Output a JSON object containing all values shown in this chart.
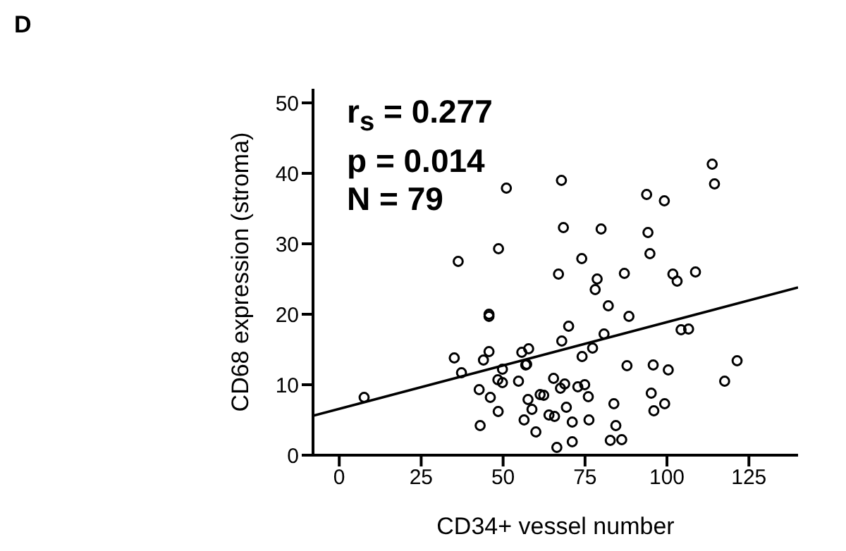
{
  "chart_data": {
    "type": "scatter",
    "xlabel": "CD34+ vessel number",
    "ylabel": "CD68 expression (stroma)",
    "annotations": [
      "D",
      "r$_{s}$ = 0.277",
      "p = 0.014",
      "N = 79"
    ],
    "xlim": [
      -8,
      140
    ],
    "ylim": [
      0,
      52
    ],
    "xticks": [
      0,
      25,
      50,
      75,
      100,
      125
    ],
    "yticks": [
      0,
      10,
      20,
      30,
      40,
      50
    ],
    "grid": false,
    "legend": false,
    "marker": "circle",
    "series": [
      {
        "color": "#000000",
        "x": [
          7.6,
          35.1,
          37.3,
          42.7,
          43.0,
          44.0,
          45.7,
          45.7,
          45.7,
          46.1,
          48.5,
          48.4,
          49.8,
          49.8,
          54.7,
          55.7,
          57.8,
          56.9,
          57.2,
          57.6,
          58.8,
          56.4,
          60.0,
          65.4,
          61.3,
          62.4,
          64.0,
          65.7,
          67.5,
          68.8,
          69.3,
          71.1,
          66.4,
          71.1,
          67.9,
          70.0,
          66.9,
          72.8,
          74.9,
          74.1,
          76.0,
          76.2,
          77.3,
          78.7,
          80.8,
          82.1,
          83.8,
          84.4,
          82.7,
          86.2,
          87.8,
          88.4,
          87.0,
          95.2,
          95.8,
          96.0,
          99.3,
          100.4,
          101.8,
          103.1,
          104.3,
          106.6,
          108.7,
          121.4,
          117.6,
          113.8,
          114.5,
          67.8,
          68.4,
          74.0,
          79.9,
          78.1,
          93.8,
          99.2,
          94.2,
          94.8,
          36.3,
          48.6,
          51.0
        ],
        "values": [
          8.2,
          13.8,
          11.7,
          9.3,
          4.2,
          13.5,
          14.7,
          20,
          19.7,
          8.2,
          6.2,
          10.7,
          12.2,
          10.3,
          10.5,
          14.6,
          15.1,
          12.8,
          12.9,
          7.9,
          6.5,
          5,
          3.3,
          10.9,
          8.6,
          8.5,
          5.7,
          5.5,
          9.5,
          10.1,
          6.8,
          4.7,
          1.1,
          1.9,
          16.2,
          18.3,
          25.7,
          9.7,
          10,
          14,
          8.3,
          5,
          15.2,
          25,
          17.2,
          21.2,
          7.3,
          4.2,
          2.1,
          2.2,
          12.7,
          19.7,
          25.8,
          8.8,
          12.8,
          6.3,
          7.3,
          12.1,
          25.7,
          24.7,
          17.8,
          17.9,
          26,
          13.4,
          10.5,
          41.3,
          38.5,
          39,
          32.3,
          27.9,
          32.1,
          23.5,
          37,
          36.1,
          31.6,
          28.6,
          27.5,
          29.3,
          37.9
        ]
      },
      {
        "type": "line",
        "color": "#000000",
        "marker": "none",
        "line_style": "solid",
        "x": [
          -8,
          140
        ],
        "values": [
          5.6,
          23.8
        ]
      }
    ]
  }
}
